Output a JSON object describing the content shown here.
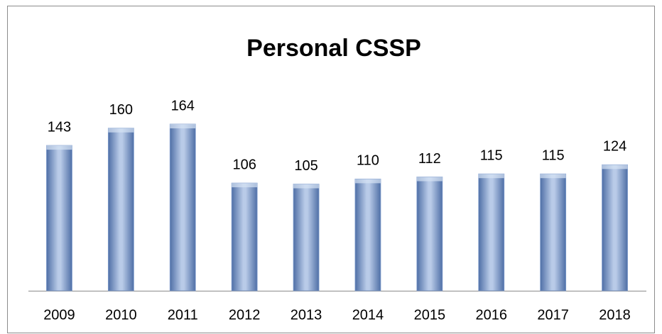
{
  "chart_data": {
    "type": "bar",
    "title": "Personal CSSP",
    "categories": [
      "2009",
      "2010",
      "2011",
      "2012",
      "2013",
      "2014",
      "2015",
      "2016",
      "2017",
      "2018"
    ],
    "values": [
      143,
      160,
      164,
      106,
      105,
      110,
      112,
      115,
      115,
      124
    ],
    "color": "#7f9ccc"
  }
}
